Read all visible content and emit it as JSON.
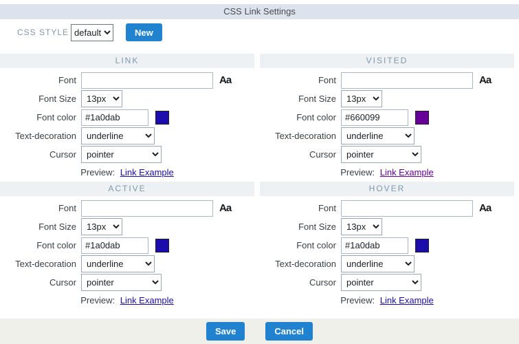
{
  "title": "CSS Link Settings",
  "toolbar": {
    "style_label": "CSS STYLE",
    "style_value": "default",
    "new_button": "New"
  },
  "labels": {
    "font": "Font",
    "font_size": "Font Size",
    "font_color": "Font color",
    "text_decoration": "Text-decoration",
    "cursor": "Cursor",
    "preview": "Preview:",
    "link_example": "Link Example",
    "font_icon": "Aa"
  },
  "sections": [
    {
      "title": "LINK",
      "font": "",
      "font_size": "13px",
      "font_color": "#1a0dab",
      "text_decoration": "underline",
      "cursor": "pointer",
      "swatch": "#1a0dab",
      "preview_color": "#1a0dab"
    },
    {
      "title": "VISITED",
      "font": "",
      "font_size": "13px",
      "font_color": "#660099",
      "text_decoration": "underline",
      "cursor": "pointer",
      "swatch": "#660099",
      "preview_color": "#660099"
    },
    {
      "title": "ACTIVE",
      "font": "",
      "font_size": "13px",
      "font_color": "#1a0dab",
      "text_decoration": "underline",
      "cursor": "pointer",
      "swatch": "#1a0dab",
      "preview_color": "#1a0dab"
    },
    {
      "title": "HOVER",
      "font": "",
      "font_size": "13px",
      "font_color": "#1a0dab",
      "text_decoration": "underline",
      "cursor": "pointer",
      "swatch": "#1a0dab",
      "preview_color": "#1a0dab"
    }
  ],
  "footer": {
    "save_label": "Save",
    "cancel_label": "Cancel"
  },
  "colors": {
    "accent_blue": "#2183cf",
    "title_bar_bg": "#dce3ec",
    "section_header_bg": "#eef1f4",
    "footer_bg": "#f0f0eb",
    "link_blue": "#1a0dab",
    "visited_purple": "#660099"
  }
}
